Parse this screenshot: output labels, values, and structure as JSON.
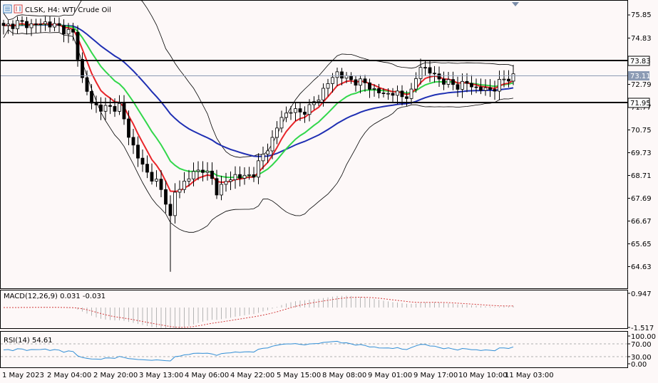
{
  "chart": {
    "symbol_title": "CLSK, H4:  WTI Crude Oil",
    "price_ticks": [
      "75.85",
      "74.83",
      "73.83",
      "72.79",
      "71.77",
      "70.75",
      "69.73",
      "68.71",
      "67.69",
      "66.67",
      "65.65",
      "64.63"
    ],
    "current_price_tag": "73.11",
    "resistance_tag": "73.83",
    "support_tag": "71.95",
    "macd_label": "MACD(12,26,9) 0.031 -0.031",
    "macd_ticks": [
      "0.947",
      "-1.517"
    ],
    "rsi_label": "RSI(14) 54.61",
    "rsi_ticks": [
      "100.00",
      "70.00",
      "30.00",
      "0.00"
    ],
    "time_labels": [
      "1 May 2023",
      "2 May 04:00",
      "2 May 20:00",
      "3 May 13:00",
      "4 May 06:00",
      "4 May 22:00",
      "5 May 15:00",
      "8 May 08:00",
      "9 May 01:00",
      "9 May 17:00",
      "10 May 10:00",
      "11 May 03:00"
    ]
  },
  "colors": {
    "background": "#fdf8f8",
    "ema_red": "#e8252a",
    "ema_green": "#32d74b",
    "ema_blue": "#1f2fb3",
    "bollinger": "#000000",
    "macd_histogram": "#b4b4b4",
    "macd_signal": "#d23c3c",
    "rsi_line": "#2f8ed6",
    "level_line": "#000000",
    "current_price_line": "#8c9bb4"
  },
  "chart_data": {
    "type": "candlestick",
    "title": "CLSK, H4:  WTI Crude Oil",
    "x_range": [
      "1 May 2023",
      "11 May 03:00"
    ],
    "y_range": [
      64.3,
      76.3
    ],
    "levels": {
      "resistance": 73.83,
      "support": 71.95,
      "last_price": 73.11
    },
    "close_path": [
      [
        0,
        75.3
      ],
      [
        3,
        75.5
      ],
      [
        6,
        75.4
      ],
      [
        9,
        75.5
      ],
      [
        12,
        75.3
      ],
      [
        15,
        75.0
      ],
      [
        17,
        73.0
      ],
      [
        19,
        71.9
      ],
      [
        21,
        71.7
      ],
      [
        23,
        71.7
      ],
      [
        25,
        71.8
      ],
      [
        27,
        70.5
      ],
      [
        29,
        69.5
      ],
      [
        31,
        68.8
      ],
      [
        33,
        68.4
      ],
      [
        35,
        67.6
      ],
      [
        36,
        66.8
      ],
      [
        37,
        67.9
      ],
      [
        39,
        68.4
      ],
      [
        41,
        68.8
      ],
      [
        43,
        69.0
      ],
      [
        45,
        68.5
      ],
      [
        46,
        68.0
      ],
      [
        48,
        68.4
      ],
      [
        50,
        68.7
      ],
      [
        52,
        68.6
      ],
      [
        54,
        68.8
      ],
      [
        56,
        69.6
      ],
      [
        58,
        70.3
      ],
      [
        60,
        71.3
      ],
      [
        62,
        71.6
      ],
      [
        64,
        71.5
      ],
      [
        66,
        71.7
      ],
      [
        68,
        72.2
      ],
      [
        70,
        72.8
      ],
      [
        72,
        73.3
      ],
      [
        74,
        73.0
      ],
      [
        76,
        72.9
      ],
      [
        78,
        72.8
      ],
      [
        80,
        72.5
      ],
      [
        82,
        72.3
      ],
      [
        84,
        72.4
      ],
      [
        86,
        72.2
      ],
      [
        88,
        72.4
      ],
      [
        90,
        73.6
      ],
      [
        92,
        73.3
      ],
      [
        94,
        73.0
      ],
      [
        96,
        72.8
      ],
      [
        98,
        72.7
      ],
      [
        100,
        72.8
      ],
      [
        102,
        72.6
      ],
      [
        104,
        72.5
      ],
      [
        106,
        72.6
      ],
      [
        108,
        73.0
      ],
      [
        110,
        73.1
      ]
    ],
    "macd_signal": {
      "last": -0.031
    },
    "macd_main": {
      "last": 0.031
    },
    "rsi_last": 54.61
  }
}
